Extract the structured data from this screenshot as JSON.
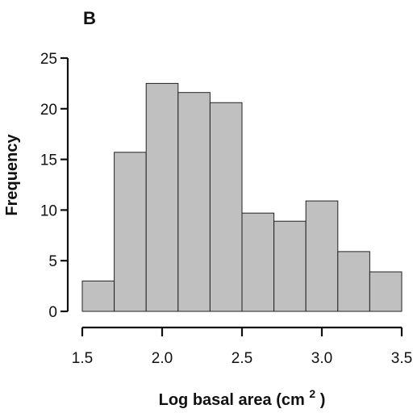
{
  "panel_label": "B",
  "chart_data": {
    "type": "bar",
    "subtype": "histogram",
    "bin_edges": [
      1.5,
      1.7,
      1.9,
      2.1,
      2.3,
      2.5,
      2.7,
      2.9,
      3.1,
      3.3,
      3.5
    ],
    "values": [
      3,
      15.7,
      22.5,
      21.6,
      20.6,
      9.7,
      8.9,
      10.9,
      5.9,
      3.9
    ],
    "title": "",
    "xlabel": "Log basal area (cm",
    "xlabel_superscript": "2",
    "xlabel_suffix": ")",
    "ylabel": "Frequency",
    "xlim": [
      1.5,
      3.5
    ],
    "ylim": [
      0,
      25
    ],
    "xticks": [
      1.5,
      2.0,
      2.5,
      3.0,
      3.5
    ],
    "xtick_labels": [
      "1.5",
      "2.0",
      "2.5",
      "3.0",
      "3.5"
    ],
    "yticks": [
      0,
      5,
      10,
      15,
      20,
      25
    ],
    "ytick_labels": [
      "0",
      "5",
      "10",
      "15",
      "20",
      "25"
    ],
    "grid": false,
    "legend": "none",
    "colors": {
      "bar_fill": "#c0c0c0",
      "bar_edge": "#222222",
      "axis": "#111111"
    }
  }
}
